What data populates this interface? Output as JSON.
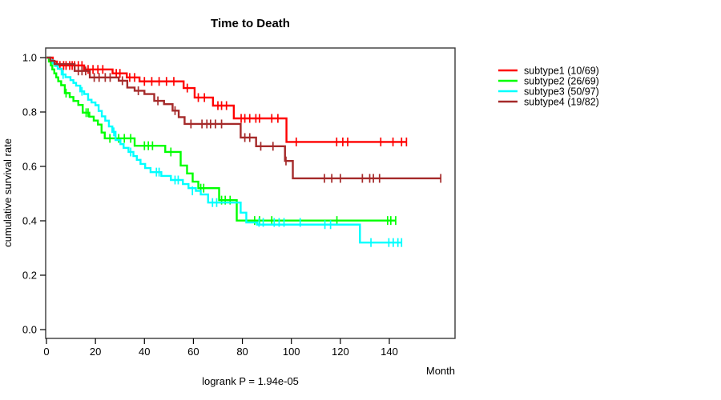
{
  "chart_data": {
    "type": "line",
    "subtype": "kaplan-meier-step-curves",
    "title": "Time to Death",
    "xlabel": "Month",
    "ylabel": "cumulative survival rate",
    "annotation": "logrank P = 1.94e-05",
    "x_ticks": [
      0,
      20,
      40,
      60,
      80,
      100,
      120,
      140
    ],
    "y_ticks": [
      "0.0",
      "0.2",
      "0.4",
      "0.6",
      "0.8",
      "1.0"
    ],
    "xlim": [
      0,
      167
    ],
    "ylim": [
      0.0,
      1.0
    ],
    "grid": false,
    "legend_position": "right-outside",
    "series": [
      {
        "name": "subtype1",
        "label": "subtype1 (10/69)",
        "color": "#ff0000",
        "start": [
          0,
          1.0
        ],
        "end_month": 147,
        "steps": [
          [
            2.6,
            0.9855
          ],
          [
            4.3,
            0.971
          ],
          [
            15.4,
            0.9565
          ],
          [
            27,
            0.942
          ],
          [
            32.8,
            0.927
          ],
          [
            38,
            0.9125
          ],
          [
            56,
            0.888
          ],
          [
            60.5,
            0.853
          ],
          [
            68,
            0.8235
          ],
          [
            76.5,
            0.7765
          ],
          [
            98,
            0.69
          ]
        ],
        "censor_marks": [
          [
            5.5,
            0.971
          ],
          [
            7,
            0.971
          ],
          [
            8,
            0.971
          ],
          [
            9.5,
            0.971
          ],
          [
            10.5,
            0.971
          ],
          [
            11.5,
            0.971
          ],
          [
            13,
            0.971
          ],
          [
            14.5,
            0.971
          ],
          [
            17,
            0.9565
          ],
          [
            19,
            0.9565
          ],
          [
            21,
            0.9565
          ],
          [
            23,
            0.9565
          ],
          [
            28.5,
            0.942
          ],
          [
            30,
            0.942
          ],
          [
            34,
            0.927
          ],
          [
            36,
            0.927
          ],
          [
            40,
            0.9125
          ],
          [
            43,
            0.9125
          ],
          [
            46,
            0.9125
          ],
          [
            49,
            0.9125
          ],
          [
            52,
            0.9125
          ],
          [
            57.5,
            0.888
          ],
          [
            62,
            0.853
          ],
          [
            64.5,
            0.853
          ],
          [
            70,
            0.8235
          ],
          [
            71.5,
            0.8235
          ],
          [
            73.5,
            0.8235
          ],
          [
            79.5,
            0.7765
          ],
          [
            81,
            0.7765
          ],
          [
            83,
            0.7765
          ],
          [
            85.5,
            0.7765
          ],
          [
            87,
            0.7765
          ],
          [
            92,
            0.7765
          ],
          [
            94.5,
            0.7765
          ],
          [
            102,
            0.69
          ],
          [
            118.5,
            0.69
          ],
          [
            121,
            0.69
          ],
          [
            123,
            0.69
          ],
          [
            136.5,
            0.69
          ],
          [
            141.5,
            0.69
          ],
          [
            145,
            0.69
          ],
          [
            147,
            0.69
          ]
        ]
      },
      {
        "name": "subtype2",
        "label": "subtype2 (26/69)",
        "color": "#00ff00",
        "start": [
          0,
          1.0
        ],
        "end_month": 142.6,
        "steps": [
          [
            1,
            0.9855
          ],
          [
            1.8,
            0.971
          ],
          [
            2.4,
            0.9565
          ],
          [
            3.2,
            0.942
          ],
          [
            4,
            0.9275
          ],
          [
            4.8,
            0.913
          ],
          [
            6,
            0.8985
          ],
          [
            7.5,
            0.8695
          ],
          [
            9.5,
            0.855
          ],
          [
            11,
            0.8405
          ],
          [
            13,
            0.826
          ],
          [
            14.8,
            0.7975
          ],
          [
            17.5,
            0.783
          ],
          [
            19.3,
            0.7685
          ],
          [
            21,
            0.754
          ],
          [
            22.5,
            0.7245
          ],
          [
            23.8,
            0.703
          ],
          [
            36,
            0.676
          ],
          [
            48.5,
            0.653
          ],
          [
            54.8,
            0.603
          ],
          [
            57.4,
            0.574
          ],
          [
            59.7,
            0.544
          ],
          [
            62,
            0.52
          ],
          [
            70.5,
            0.476
          ],
          [
            77.7,
            0.401
          ]
        ],
        "censor_marks": [
          [
            8,
            0.8695
          ],
          [
            16.2,
            0.7975
          ],
          [
            17,
            0.7975
          ],
          [
            25.9,
            0.703
          ],
          [
            29.5,
            0.703
          ],
          [
            31.8,
            0.703
          ],
          [
            34.4,
            0.703
          ],
          [
            40,
            0.676
          ],
          [
            41.6,
            0.676
          ],
          [
            43.3,
            0.676
          ],
          [
            50.8,
            0.653
          ],
          [
            63,
            0.52
          ],
          [
            64.2,
            0.52
          ],
          [
            71.5,
            0.476
          ],
          [
            73,
            0.476
          ],
          [
            75,
            0.476
          ],
          [
            85,
            0.401
          ],
          [
            87,
            0.401
          ],
          [
            92,
            0.401
          ],
          [
            118.6,
            0.401
          ],
          [
            139.3,
            0.401
          ],
          [
            140.6,
            0.401
          ],
          [
            142.6,
            0.401
          ]
        ]
      },
      {
        "name": "subtype3",
        "label": "subtype3 (50/97)",
        "color": "#00ffff",
        "start": [
          0,
          1.0
        ],
        "end_month": 145,
        "steps": [
          [
            1.6,
            0.99
          ],
          [
            2.5,
            0.979
          ],
          [
            3.5,
            0.969
          ],
          [
            4.6,
            0.959
          ],
          [
            6.2,
            0.938
          ],
          [
            7.8,
            0.928
          ],
          [
            9.8,
            0.917
          ],
          [
            11,
            0.907
          ],
          [
            12.1,
            0.897
          ],
          [
            13.8,
            0.876
          ],
          [
            15.4,
            0.866
          ],
          [
            17,
            0.845
          ],
          [
            18.4,
            0.835
          ],
          [
            20,
            0.825
          ],
          [
            21.3,
            0.804
          ],
          [
            22.6,
            0.784
          ],
          [
            24,
            0.768
          ],
          [
            25.5,
            0.747
          ],
          [
            26.9,
            0.727
          ],
          [
            28.2,
            0.697
          ],
          [
            30.2,
            0.682
          ],
          [
            31.5,
            0.668
          ],
          [
            33.5,
            0.653
          ],
          [
            35.5,
            0.638
          ],
          [
            36.9,
            0.624
          ],
          [
            38.4,
            0.609
          ],
          [
            40.3,
            0.594
          ],
          [
            42.5,
            0.579
          ],
          [
            46.9,
            0.565
          ],
          [
            50.8,
            0.55
          ],
          [
            55.7,
            0.535
          ],
          [
            58,
            0.52
          ],
          [
            61,
            0.51
          ],
          [
            63,
            0.497
          ],
          [
            66,
            0.467
          ],
          [
            79.3,
            0.43
          ],
          [
            81.6,
            0.394
          ],
          [
            86,
            0.386
          ],
          [
            128,
            0.32
          ]
        ],
        "censor_marks": [
          [
            6.8,
            0.938
          ],
          [
            14.5,
            0.876
          ],
          [
            27.5,
            0.727
          ],
          [
            34.4,
            0.653
          ],
          [
            44.9,
            0.579
          ],
          [
            46,
            0.579
          ],
          [
            52.5,
            0.55
          ],
          [
            53.8,
            0.55
          ],
          [
            59.6,
            0.51
          ],
          [
            67.8,
            0.467
          ],
          [
            69.5,
            0.467
          ],
          [
            86.8,
            0.394
          ],
          [
            88.5,
            0.394
          ],
          [
            93,
            0.394
          ],
          [
            95,
            0.394
          ],
          [
            97,
            0.394
          ],
          [
            103.6,
            0.394
          ],
          [
            113.7,
            0.386
          ],
          [
            116,
            0.386
          ],
          [
            132.5,
            0.32
          ],
          [
            139.8,
            0.32
          ],
          [
            141.6,
            0.32
          ],
          [
            143.5,
            0.32
          ],
          [
            145,
            0.32
          ]
        ]
      },
      {
        "name": "subtype4",
        "label": "subtype4 (19/82)",
        "color": "#a52a2a",
        "start": [
          0,
          1.0
        ],
        "end_month": 161,
        "steps": [
          [
            1.6,
            0.988
          ],
          [
            3.3,
            0.976
          ],
          [
            11.5,
            0.951
          ],
          [
            17.7,
            0.927
          ],
          [
            29.5,
            0.915
          ],
          [
            33,
            0.89
          ],
          [
            36,
            0.878
          ],
          [
            40,
            0.866
          ],
          [
            44,
            0.841
          ],
          [
            48,
            0.829
          ],
          [
            51.5,
            0.805
          ],
          [
            54,
            0.781
          ],
          [
            56.4,
            0.756
          ],
          [
            79.3,
            0.706
          ],
          [
            85.6,
            0.674
          ],
          [
            97.4,
            0.62
          ],
          [
            100.6,
            0.556
          ]
        ],
        "censor_marks": [
          [
            13,
            0.951
          ],
          [
            14.5,
            0.951
          ],
          [
            16,
            0.951
          ],
          [
            19.5,
            0.927
          ],
          [
            21.5,
            0.927
          ],
          [
            24,
            0.927
          ],
          [
            26,
            0.927
          ],
          [
            31,
            0.915
          ],
          [
            37.5,
            0.878
          ],
          [
            45.5,
            0.841
          ],
          [
            52.5,
            0.805
          ],
          [
            59,
            0.756
          ],
          [
            63.5,
            0.756
          ],
          [
            65.5,
            0.756
          ],
          [
            67,
            0.756
          ],
          [
            69,
            0.756
          ],
          [
            71.5,
            0.756
          ],
          [
            81,
            0.706
          ],
          [
            83,
            0.706
          ],
          [
            87.5,
            0.674
          ],
          [
            92.5,
            0.674
          ],
          [
            97.8,
            0.62
          ],
          [
            113.5,
            0.556
          ],
          [
            116.5,
            0.556
          ],
          [
            120,
            0.556
          ],
          [
            129,
            0.556
          ],
          [
            132,
            0.556
          ],
          [
            133.5,
            0.556
          ],
          [
            136,
            0.556
          ],
          [
            161,
            0.556
          ]
        ]
      }
    ]
  }
}
